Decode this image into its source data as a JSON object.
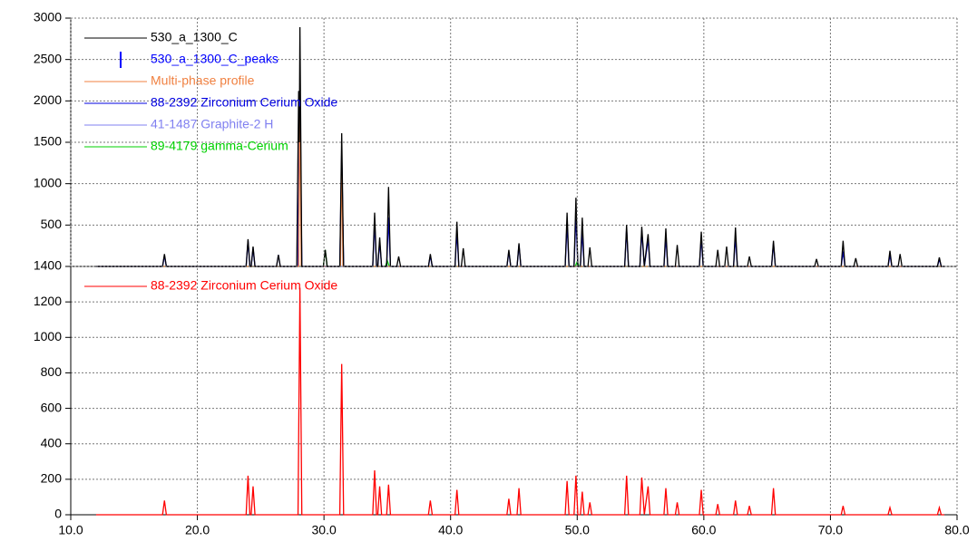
{
  "chart_data": [
    {
      "type": "line",
      "xlim": [
        10,
        80
      ],
      "ylim": [
        0,
        3000
      ],
      "yticks": [
        500,
        1000,
        1500,
        2000,
        2500,
        3000
      ],
      "grid": true,
      "legend": "upper left",
      "series": [
        {
          "name": "530_a_1300_C",
          "color": "#000000",
          "x": [
            12,
            17.25,
            17.4,
            17.55,
            23.85,
            24.0,
            24.15,
            24.25,
            24.4,
            24.55,
            26.25,
            26.4,
            26.55,
            27.85,
            28.0,
            28.05,
            28.1,
            28.25,
            29.95,
            30.1,
            30.25,
            31.25,
            31.4,
            31.55,
            33.85,
            34.0,
            34.15,
            34.25,
            34.4,
            34.55,
            34.95,
            35.1,
            35.25,
            35.75,
            35.9,
            36.05,
            38.25,
            38.4,
            38.55,
            40.35,
            40.5,
            40.65,
            40.85,
            41.0,
            41.15,
            44.45,
            44.6,
            44.75,
            45.25,
            45.4,
            45.55,
            49.05,
            49.2,
            49.35,
            49.75,
            49.9,
            50.05,
            50.25,
            50.4,
            50.55,
            50.85,
            51.0,
            51.15,
            53.75,
            53.9,
            54.05,
            54.95,
            55.1,
            55.3,
            55.6,
            55.75,
            56.85,
            57.0,
            57.15,
            57.75,
            57.9,
            58.05,
            59.65,
            59.8,
            59.95,
            60.95,
            61.1,
            61.25,
            61.65,
            61.8,
            61.95,
            62.35,
            62.5,
            62.65,
            63.45,
            63.6,
            63.75,
            65.35,
            65.5,
            65.65,
            68.75,
            68.9,
            69.05,
            70.85,
            71.0,
            71.15,
            71.85,
            72.0,
            72.15,
            74.55,
            74.7,
            74.85,
            75.35,
            75.5,
            75.65,
            78.45,
            78.6,
            78.75,
            79
          ],
          "values": [
            0,
            0,
            150,
            0,
            0,
            330,
            0,
            0,
            240,
            0,
            0,
            140,
            0,
            0,
            2120,
            1500,
            2890,
            0,
            0,
            200,
            0,
            0,
            1610,
            0,
            0,
            650,
            0,
            0,
            350,
            0,
            0,
            960,
            0,
            0,
            120,
            0,
            0,
            150,
            0,
            0,
            540,
            0,
            0,
            220,
            0,
            0,
            200,
            0,
            0,
            280,
            0,
            0,
            650,
            0,
            0,
            830,
            0,
            0,
            590,
            0,
            0,
            230,
            0,
            0,
            500,
            0,
            0,
            480,
            0,
            390,
            0,
            0,
            460,
            0,
            0,
            260,
            0,
            0,
            420,
            0,
            0,
            200,
            0,
            0,
            240,
            0,
            0,
            470,
            0,
            0,
            120,
            0,
            0,
            310,
            0,
            0,
            90,
            0,
            0,
            310,
            0,
            0,
            100,
            0,
            0,
            190,
            0,
            0,
            150,
            0,
            0,
            110,
            0,
            0
          ]
        },
        {
          "name": "530_a_1300_C_peaks",
          "color": "#0000ff",
          "marker": "tick",
          "x": [],
          "values": []
        },
        {
          "name": "Multi-phase profile",
          "color": "#f08040",
          "x": [
            12,
            28.0,
            28.1,
            28.2,
            31.3,
            31.4,
            31.5,
            79
          ],
          "values": [
            0,
            0,
            2100,
            0,
            0,
            1350,
            0,
            0
          ]
        },
        {
          "name": "88-2392 Zirconium Cerium Oxide",
          "color": "#0000e0",
          "x": [
            12,
            17.25,
            17.4,
            17.55,
            23.85,
            24.0,
            24.15,
            24.25,
            24.4,
            24.55,
            27.95,
            28.1,
            28.25,
            31.25,
            31.4,
            31.55,
            33.85,
            34.0,
            34.15,
            34.25,
            34.4,
            34.55,
            34.95,
            35.1,
            35.25,
            38.25,
            38.4,
            38.55,
            40.35,
            40.5,
            40.65,
            44.45,
            44.6,
            44.75,
            45.25,
            45.4,
            45.55,
            49.05,
            49.2,
            49.35,
            49.75,
            49.9,
            50.05,
            50.25,
            50.4,
            50.55,
            53.75,
            53.9,
            54.05,
            54.95,
            55.1,
            55.3,
            55.6,
            55.75,
            56.85,
            57.0,
            57.15,
            59.65,
            59.8,
            59.95,
            62.35,
            62.5,
            62.65,
            65.35,
            65.5,
            65.65,
            70.85,
            71.0,
            71.15,
            74.55,
            74.7,
            74.85,
            78.45,
            78.6,
            78.75,
            79
          ],
          "values": [
            0,
            0,
            130,
            0,
            0,
            310,
            0,
            0,
            220,
            0,
            0,
            2150,
            0,
            0,
            1380,
            0,
            0,
            540,
            0,
            0,
            300,
            0,
            0,
            590,
            0,
            0,
            130,
            0,
            0,
            420,
            0,
            0,
            180,
            0,
            0,
            260,
            0,
            0,
            520,
            0,
            0,
            620,
            0,
            0,
            420,
            0,
            0,
            450,
            0,
            0,
            430,
            0,
            330,
            0,
            0,
            360,
            0,
            0,
            350,
            0,
            0,
            360,
            0,
            0,
            280,
            0,
            0,
            180,
            0,
            0,
            140,
            0,
            0,
            90,
            0,
            0
          ]
        },
        {
          "name": "41-1487 Graphite-2  H",
          "color": "#8080f0",
          "x": [
            12,
            26.25,
            26.4,
            26.55,
            79
          ],
          "values": [
            0,
            0,
            140,
            0,
            0
          ]
        },
        {
          "name": "89-4179 gamma-Cerium",
          "color": "#00d000",
          "x": [
            12,
            29.95,
            30.1,
            30.25,
            34.85,
            35.0,
            35.15,
            49.85,
            50.0,
            50.15,
            79
          ],
          "values": [
            0,
            0,
            200,
            0,
            0,
            70,
            0,
            0,
            60,
            0,
            0
          ]
        }
      ]
    },
    {
      "type": "line",
      "xlim": [
        10,
        80
      ],
      "ylim": [
        0,
        1400
      ],
      "yticks": [
        0,
        200,
        400,
        600,
        800,
        1000,
        1200,
        1400
      ],
      "grid": true,
      "legend": "upper left",
      "xticks": [
        {
          "value": 10,
          "label": "10.0"
        },
        {
          "value": 20,
          "label": "20.0"
        },
        {
          "value": 30,
          "label": "30.0"
        },
        {
          "value": 40,
          "label": "40.0"
        },
        {
          "value": 50,
          "label": "50.0"
        },
        {
          "value": 60,
          "label": "60.0"
        },
        {
          "value": 70,
          "label": "70.0"
        },
        {
          "value": 80,
          "label": "80.0"
        }
      ],
      "series": [
        {
          "name": "88-2392 Zirconium Cerium Oxide",
          "color": "#ff0000",
          "x": [
            12,
            17.25,
            17.4,
            17.55,
            23.85,
            24.0,
            24.15,
            24.25,
            24.4,
            24.55,
            27.95,
            28.1,
            28.25,
            31.25,
            31.4,
            31.55,
            33.85,
            34.0,
            34.15,
            34.25,
            34.4,
            34.55,
            34.95,
            35.1,
            35.25,
            38.25,
            38.4,
            38.55,
            40.35,
            40.5,
            40.65,
            44.45,
            44.6,
            44.75,
            45.25,
            45.4,
            45.55,
            49.05,
            49.2,
            49.35,
            49.75,
            49.9,
            50.05,
            50.25,
            50.4,
            50.55,
            50.85,
            51.0,
            51.15,
            53.75,
            53.9,
            54.05,
            54.95,
            55.1,
            55.3,
            55.6,
            55.75,
            56.85,
            57.0,
            57.15,
            57.75,
            57.9,
            58.05,
            59.65,
            59.8,
            59.95,
            60.95,
            61.1,
            61.25,
            62.35,
            62.5,
            62.65,
            63.45,
            63.6,
            63.75,
            65.35,
            65.5,
            65.65,
            70.85,
            71.0,
            71.15,
            74.55,
            74.7,
            74.85,
            78.45,
            78.6,
            78.75,
            79
          ],
          "values": [
            0,
            0,
            80,
            0,
            0,
            220,
            0,
            0,
            160,
            0,
            0,
            1280,
            0,
            0,
            850,
            0,
            0,
            250,
            0,
            0,
            160,
            0,
            0,
            170,
            0,
            0,
            80,
            0,
            0,
            140,
            0,
            0,
            90,
            0,
            0,
            150,
            0,
            0,
            190,
            0,
            0,
            220,
            0,
            0,
            130,
            0,
            0,
            70,
            0,
            0,
            220,
            0,
            0,
            210,
            0,
            160,
            0,
            0,
            150,
            0,
            0,
            70,
            0,
            0,
            140,
            0,
            0,
            60,
            0,
            0,
            80,
            0,
            0,
            50,
            0,
            0,
            150,
            0,
            0,
            50,
            0,
            0,
            40,
            0,
            0,
            40,
            0,
            0
          ]
        }
      ]
    }
  ]
}
